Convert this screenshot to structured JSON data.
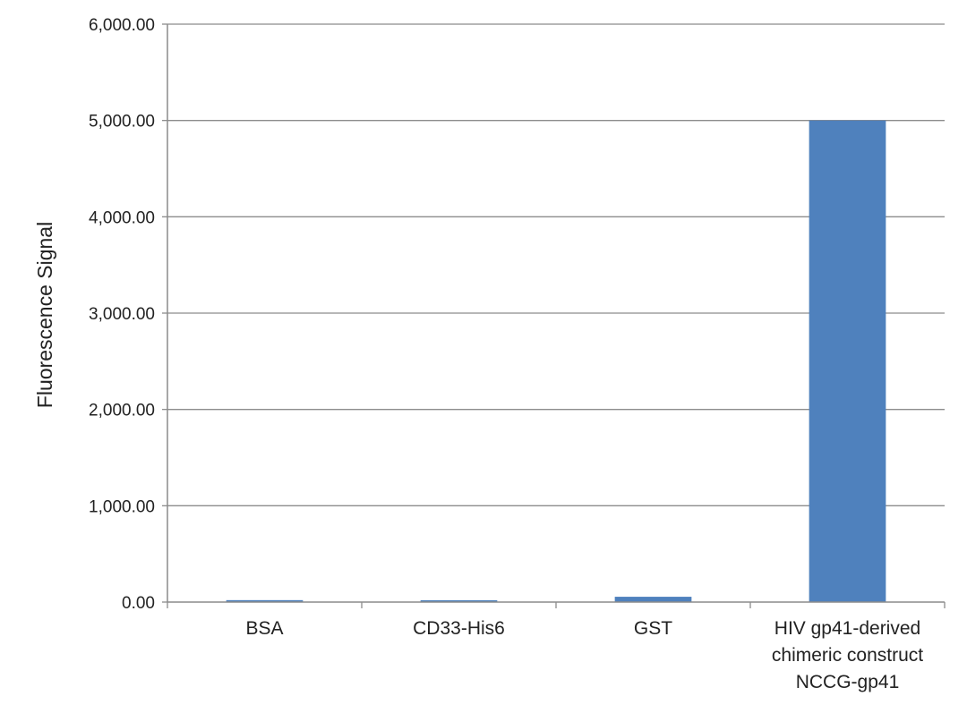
{
  "chart_data": {
    "type": "bar",
    "ylabel": "Fluorescence Signal",
    "xlabel": "",
    "ylim": [
      0,
      6000
    ],
    "y_ticks": [
      0,
      1000,
      2000,
      3000,
      4000,
      5000,
      6000
    ],
    "y_tick_labels": [
      "0.00",
      "1,000.00",
      "2,000.00",
      "3,000.00",
      "4,000.00",
      "5,000.00",
      "6,000.00"
    ],
    "grid": true,
    "legend": "none",
    "categories": [
      [
        "BSA"
      ],
      [
        "CD33-His6"
      ],
      [
        "GST"
      ],
      [
        "HIV gp41-derived",
        "chimeric construct",
        "NCCG-gp41"
      ]
    ],
    "values": [
      20,
      15,
      55,
      5000
    ],
    "colors": {
      "bar": "#4f81bd",
      "grid": "#8c8c8c",
      "axis": "#8c8c8c"
    }
  }
}
